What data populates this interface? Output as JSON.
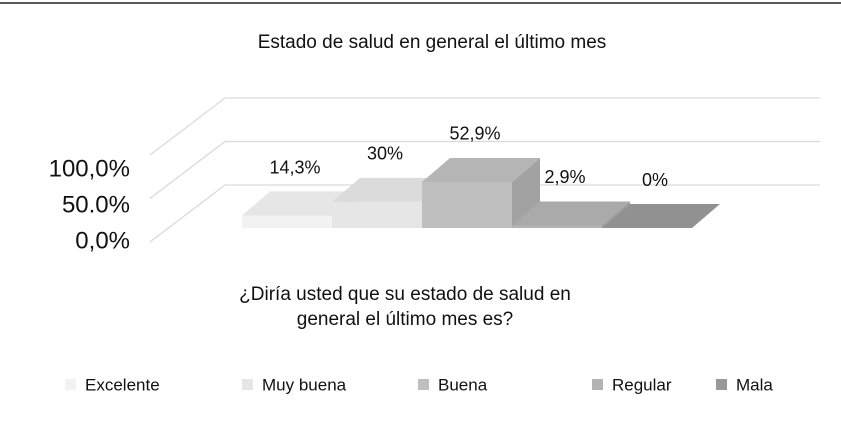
{
  "chart_data": {
    "type": "bar3d",
    "title": "Estado de salud en general el último mes",
    "categories": [
      "¿Diría usted que su estado de salud en general el último mes es?"
    ],
    "series": [
      {
        "name": "Excelente",
        "color": "#f2f2f2",
        "values": [
          14.3
        ],
        "value_labels": [
          "14,3%"
        ]
      },
      {
        "name": "Muy buena",
        "color": "#e6e6e6",
        "values": [
          30
        ],
        "value_labels": [
          "30%"
        ]
      },
      {
        "name": "Buena",
        "color": "#bfbfbf",
        "values": [
          52.9
        ],
        "value_labels": [
          "52,9%"
        ]
      },
      {
        "name": "Regular",
        "color": "#b3b3b3",
        "values": [
          2.9
        ],
        "value_labels": [
          "2,9%"
        ]
      },
      {
        "name": "Mala",
        "color": "#999999",
        "values": [
          0
        ],
        "value_labels": [
          "0%"
        ]
      }
    ],
    "ylim": [
      0,
      100
    ],
    "yticks": [
      {
        "value": 0,
        "label": "0,0%"
      },
      {
        "value": 50,
        "label": "50.0%"
      },
      {
        "value": 100,
        "label": "100,0%"
      }
    ],
    "grid": true,
    "legend": "bottom"
  }
}
